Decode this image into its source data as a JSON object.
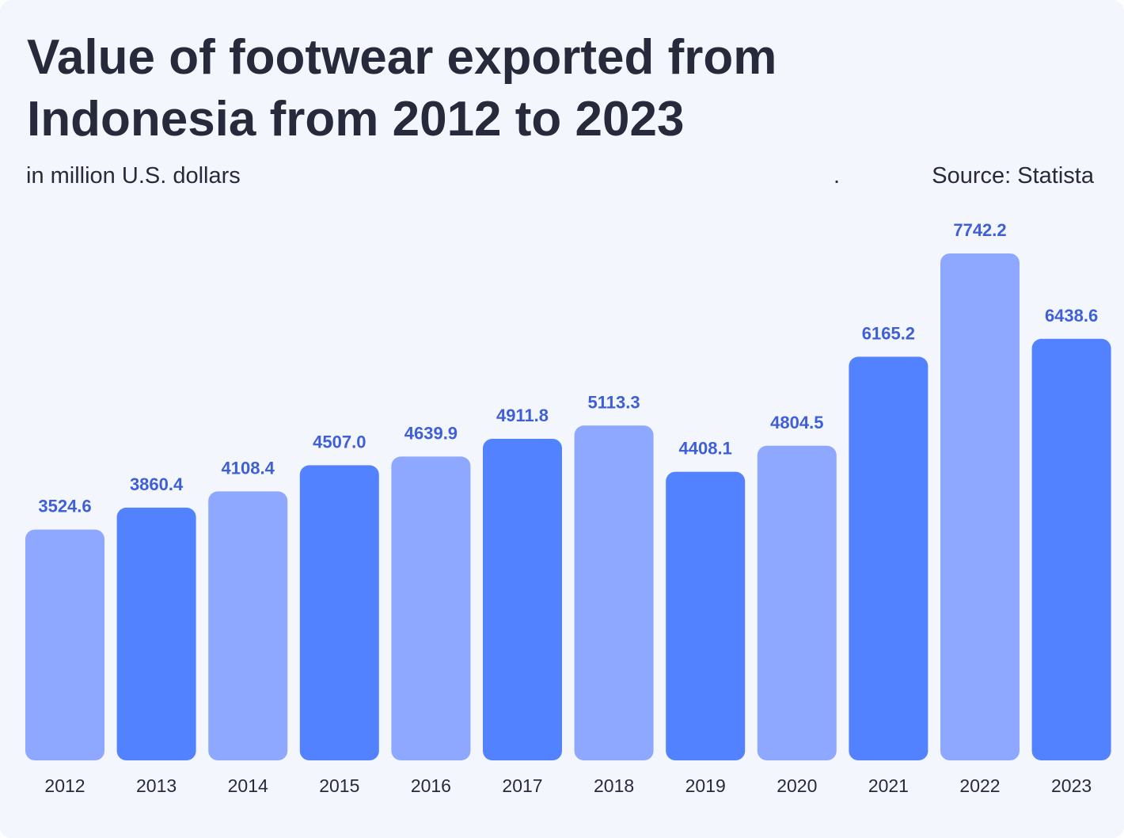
{
  "header": {
    "title": "Value of footwear exported from\nIndonesia from 2012 to 2023",
    "subtitle": "in million U.S. dollars",
    "separator": ".",
    "source": "Source: Statista"
  },
  "colors": {
    "bar_light": "#8fa8ff",
    "bar_dark": "#5282ff",
    "value_label": "#3f5fd6",
    "tick_label": "#272a3a",
    "background": "#f4f6fd"
  },
  "chart_data": {
    "type": "bar",
    "title": "Value of footwear exported from Indonesia from 2012 to 2023",
    "subtitle": "in million U.S. dollars",
    "xlabel": "",
    "ylabel": "",
    "categories": [
      "2012",
      "2013",
      "2014",
      "2015",
      "2016",
      "2017",
      "2018",
      "2019",
      "2020",
      "2021",
      "2022",
      "2023"
    ],
    "values": [
      3524.6,
      3860.4,
      4108.4,
      4507.0,
      4639.9,
      4911.8,
      5113.3,
      4408.1,
      4804.5,
      6165.2,
      7742.2,
      6438.6
    ],
    "value_labels": [
      "3524.6",
      "3860.4",
      "4108.4",
      "4507.0",
      "4639.9",
      "4911.8",
      "5113.3",
      "4408.1",
      "4804.5",
      "6165.2",
      "7742.2",
      "6438.6"
    ],
    "ylim": [
      0,
      7742.2
    ],
    "grid": false,
    "legend": "none"
  }
}
